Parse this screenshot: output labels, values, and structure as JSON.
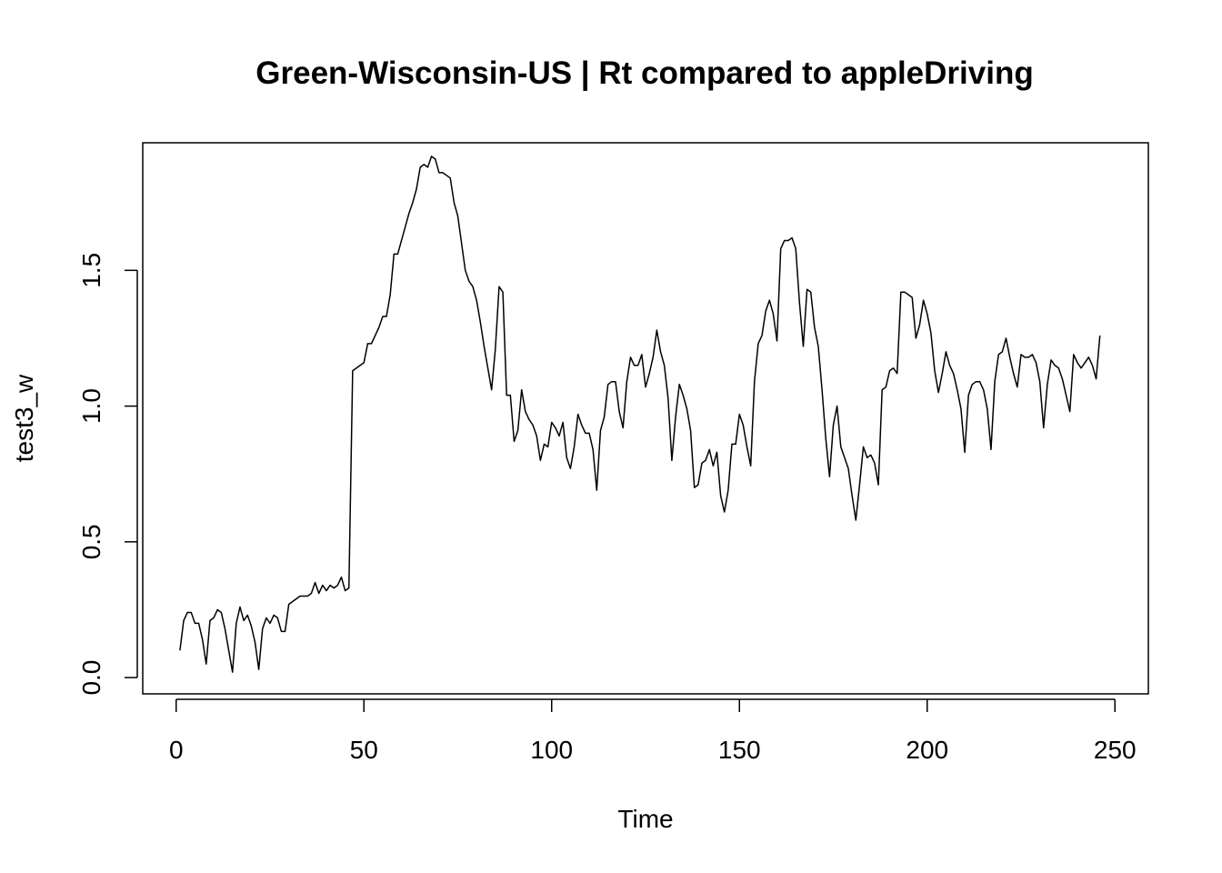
{
  "chart_data": {
    "type": "line",
    "title": "Green-Wisconsin-US | Rt compared to appleDriving",
    "xlabel": "Time",
    "ylabel": "test3_w",
    "xlim": [
      -8.9,
      258.9
    ],
    "ylim": [
      -0.06,
      1.97
    ],
    "x_ticks": [
      0,
      50,
      100,
      150,
      200,
      250
    ],
    "x_tick_labels": [
      "0",
      "50",
      "100",
      "150",
      "200",
      "250"
    ],
    "y_ticks": [
      0.0,
      0.5,
      1.0,
      1.5
    ],
    "y_tick_labels": [
      "0.0",
      "0.5",
      "1.0",
      "1.5"
    ],
    "grid": false,
    "series": [
      {
        "x_start": 1,
        "values": [
          0.1,
          0.21,
          0.24,
          0.24,
          0.2,
          0.2,
          0.14,
          0.05,
          0.21,
          0.22,
          0.25,
          0.24,
          0.18,
          0.1,
          0.02,
          0.2,
          0.26,
          0.21,
          0.23,
          0.19,
          0.13,
          0.03,
          0.18,
          0.22,
          0.2,
          0.23,
          0.22,
          0.17,
          0.17,
          0.27,
          0.28,
          0.29,
          0.3,
          0.3,
          0.3,
          0.31,
          0.35,
          0.31,
          0.34,
          0.32,
          0.34,
          0.33,
          0.34,
          0.37,
          0.32,
          0.33,
          1.13,
          1.14,
          1.15,
          1.16,
          1.23,
          1.23,
          1.26,
          1.29,
          1.33,
          1.33,
          1.41,
          1.56,
          1.56,
          1.61,
          1.66,
          1.71,
          1.75,
          1.8,
          1.88,
          1.89,
          1.88,
          1.92,
          1.91,
          1.86,
          1.86,
          1.85,
          1.84,
          1.75,
          1.7,
          1.6,
          1.5,
          1.46,
          1.44,
          1.39,
          1.31,
          1.22,
          1.14,
          1.06,
          1.21,
          1.44,
          1.42,
          1.04,
          1.04,
          0.87,
          0.91,
          1.06,
          0.98,
          0.95,
          0.93,
          0.89,
          0.8,
          0.86,
          0.85,
          0.94,
          0.92,
          0.89,
          0.94,
          0.81,
          0.77,
          0.85,
          0.97,
          0.93,
          0.9,
          0.9,
          0.84,
          0.69,
          0.91,
          0.96,
          1.08,
          1.09,
          1.09,
          0.98,
          0.92,
          1.09,
          1.18,
          1.15,
          1.15,
          1.19,
          1.07,
          1.12,
          1.18,
          1.28,
          1.2,
          1.15,
          1.03,
          0.8,
          0.96,
          1.08,
          1.04,
          0.99,
          0.91,
          0.7,
          0.71,
          0.79,
          0.8,
          0.84,
          0.78,
          0.83,
          0.67,
          0.61,
          0.69,
          0.86,
          0.86,
          0.97,
          0.93,
          0.85,
          0.78,
          1.09,
          1.23,
          1.26,
          1.35,
          1.39,
          1.34,
          1.24,
          1.58,
          1.61,
          1.61,
          1.62,
          1.58,
          1.38,
          1.22,
          1.43,
          1.42,
          1.29,
          1.22,
          1.06,
          0.88,
          0.74,
          0.93,
          1.0,
          0.85,
          0.81,
          0.77,
          0.67,
          0.58,
          0.71,
          0.85,
          0.81,
          0.82,
          0.79,
          0.71,
          1.06,
          1.07,
          1.13,
          1.14,
          1.12,
          1.42,
          1.42,
          1.41,
          1.4,
          1.25,
          1.3,
          1.39,
          1.34,
          1.27,
          1.13,
          1.05,
          1.12,
          1.2,
          1.15,
          1.12,
          1.06,
          0.99,
          0.83,
          1.04,
          1.08,
          1.09,
          1.09,
          1.06,
          0.99,
          0.84,
          1.09,
          1.19,
          1.2,
          1.25,
          1.18,
          1.12,
          1.07,
          1.19,
          1.18,
          1.18,
          1.19,
          1.16,
          1.09,
          0.92,
          1.08,
          1.17,
          1.15,
          1.14,
          1.1,
          1.04,
          0.98,
          1.19,
          1.16,
          1.14,
          1.16,
          1.18,
          1.15,
          1.1,
          1.26
        ]
      }
    ]
  }
}
